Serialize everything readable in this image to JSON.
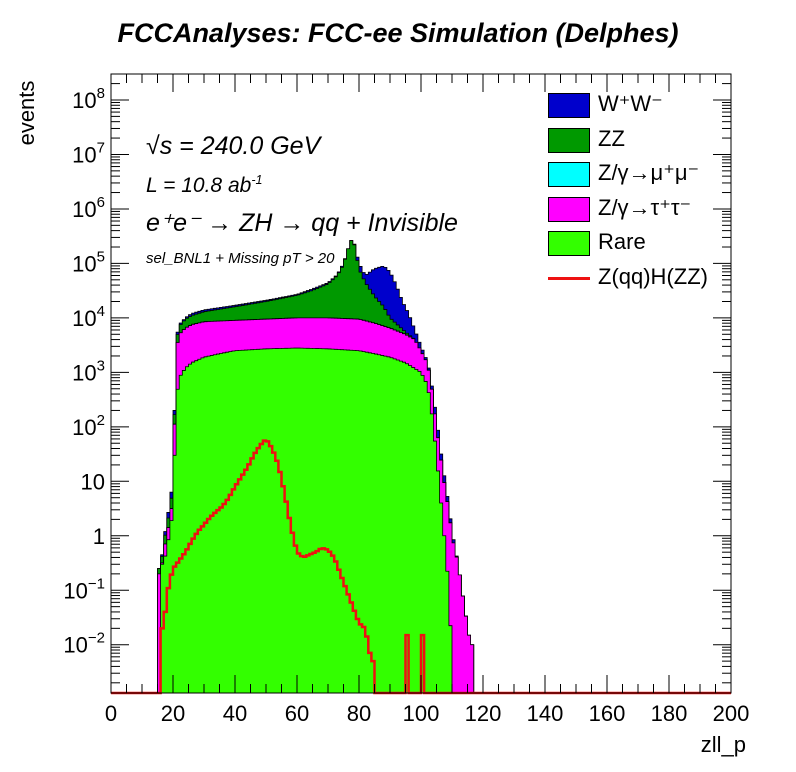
{
  "chart_data": {
    "type": "stacked-histogram-log",
    "title": "FCCAnalyses: FCC-ee Simulation (Delphes)",
    "xlabel": "zll_p",
    "ylabel": "events",
    "xlim": [
      0,
      200
    ],
    "ylim": [
      0.0013,
      300000000
    ],
    "log_y": true,
    "x_ticks": [
      0,
      20,
      40,
      60,
      80,
      100,
      120,
      140,
      160,
      180,
      200
    ],
    "y_ticks": [
      {
        "value": 0.01,
        "label": "10",
        "exp": "−2"
      },
      {
        "value": 0.1,
        "label": "10",
        "exp": "−1"
      },
      {
        "value": 1,
        "label": "1",
        "exp": ""
      },
      {
        "value": 10,
        "label": "10",
        "exp": ""
      },
      {
        "value": 100,
        "label": "10",
        "exp": "2"
      },
      {
        "value": 1000,
        "label": "10",
        "exp": "3"
      },
      {
        "value": 10000,
        "label": "10",
        "exp": "4"
      },
      {
        "value": 100000,
        "label": "10",
        "exp": "5"
      },
      {
        "value": 1000000,
        "label": "10",
        "exp": "6"
      },
      {
        "value": 10000000,
        "label": "10",
        "exp": "7"
      },
      {
        "value": 100000000,
        "label": "10",
        "exp": "8"
      }
    ],
    "annotations": {
      "sqrt_s": "s = 240.0 GeV",
      "lumi_prefix": "L = 10.8 ab",
      "lumi_exp": "-1",
      "process": "e⁺e⁻ → ZH → qq + Invisible",
      "selection": "sel_BNL1 + Missing pT > 20"
    },
    "legend": [
      {
        "key": "ww",
        "label": "W⁺W⁻",
        "color": "#0000cc",
        "style": "fill"
      },
      {
        "key": "zz",
        "label": "ZZ",
        "color": "#009900",
        "style": "fill"
      },
      {
        "key": "zmumu",
        "label": "Z/γ→μ⁺μ⁻",
        "color": "#00ffff",
        "style": "fill"
      },
      {
        "key": "ztautau",
        "label": "Z/γ→τ⁺τ⁻",
        "color": "#ff00ff",
        "style": "fill"
      },
      {
        "key": "rare",
        "label": "Rare",
        "color": "#33ff00",
        "style": "fill"
      },
      {
        "key": "signal",
        "label": "Z(qq)H(ZZ)",
        "color": "#ee1111",
        "style": "line"
      }
    ],
    "stack_order_bottom_to_top": [
      "rare",
      "ztautau",
      "zmumu",
      "zz",
      "ww"
    ],
    "stack_totals": {
      "rare": [
        [
          15,
          0
        ],
        [
          17,
          0.3
        ],
        [
          18,
          0.6
        ],
        [
          19,
          1.2
        ],
        [
          20,
          3
        ],
        [
          21,
          300
        ],
        [
          22,
          800
        ],
        [
          24,
          1200
        ],
        [
          26,
          1500
        ],
        [
          30,
          1900
        ],
        [
          35,
          2200
        ],
        [
          40,
          2500
        ],
        [
          50,
          2700
        ],
        [
          60,
          2800
        ],
        [
          70,
          2700
        ],
        [
          80,
          2500
        ],
        [
          85,
          2200
        ],
        [
          90,
          1900
        ],
        [
          95,
          1500
        ],
        [
          100,
          1000
        ],
        [
          102,
          600
        ],
        [
          103,
          300
        ],
        [
          104,
          100
        ],
        [
          105,
          30
        ],
        [
          106,
          8
        ],
        [
          107,
          2
        ],
        [
          108,
          0.5
        ],
        [
          109,
          0.1
        ],
        [
          110,
          0.005
        ],
        [
          111,
          0
        ]
      ],
      "ztautau": [
        [
          15,
          0
        ],
        [
          16,
          0.2
        ],
        [
          17,
          0.5
        ],
        [
          18,
          1
        ],
        [
          19,
          2
        ],
        [
          20,
          5
        ],
        [
          21,
          2500
        ],
        [
          22,
          5000
        ],
        [
          24,
          6500
        ],
        [
          26,
          7500
        ],
        [
          30,
          8500
        ],
        [
          40,
          9000
        ],
        [
          50,
          9500
        ],
        [
          60,
          10000
        ],
        [
          70,
          10000
        ],
        [
          80,
          9500
        ],
        [
          85,
          8000
        ],
        [
          90,
          6500
        ],
        [
          95,
          5000
        ],
        [
          98,
          4000
        ],
        [
          100,
          2500
        ],
        [
          102,
          1500
        ],
        [
          103,
          800
        ],
        [
          104,
          300
        ],
        [
          105,
          100
        ],
        [
          106,
          40
        ],
        [
          107,
          15
        ],
        [
          108,
          6
        ],
        [
          109,
          3
        ],
        [
          110,
          1
        ],
        [
          112,
          0.3
        ],
        [
          114,
          0.05
        ],
        [
          116,
          0.01
        ],
        [
          118,
          0
        ]
      ],
      "zmumu": [
        [
          15,
          0
        ],
        [
          16,
          0.2
        ],
        [
          17,
          0.5
        ],
        [
          18,
          1
        ],
        [
          19,
          2
        ],
        [
          20,
          5
        ],
        [
          21,
          2500
        ],
        [
          22,
          5000
        ],
        [
          24,
          6500
        ],
        [
          26,
          7500
        ],
        [
          30,
          8500
        ],
        [
          40,
          9000
        ],
        [
          50,
          9500
        ],
        [
          60,
          10000
        ],
        [
          70,
          10000
        ],
        [
          80,
          9500
        ],
        [
          85,
          8000
        ],
        [
          90,
          6500
        ],
        [
          95,
          5000
        ],
        [
          98,
          4000
        ],
        [
          100,
          2500
        ],
        [
          102,
          1500
        ],
        [
          103,
          800
        ],
        [
          104,
          300
        ],
        [
          105,
          100
        ],
        [
          106,
          40
        ],
        [
          107,
          15
        ],
        [
          108,
          6
        ],
        [
          109,
          3
        ],
        [
          110,
          1
        ],
        [
          112,
          0.3
        ],
        [
          114,
          0.05
        ],
        [
          116,
          0.01
        ],
        [
          118,
          0
        ]
      ],
      "zz": [
        [
          15,
          0
        ],
        [
          16,
          0.25
        ],
        [
          17,
          0.7
        ],
        [
          18,
          1.5
        ],
        [
          19,
          3
        ],
        [
          20,
          8
        ],
        [
          21,
          3500
        ],
        [
          22,
          7000
        ],
        [
          24,
          9500
        ],
        [
          26,
          11000
        ],
        [
          30,
          13000
        ],
        [
          40,
          16000
        ],
        [
          50,
          20000
        ],
        [
          60,
          26000
        ],
        [
          65,
          32000
        ],
        [
          70,
          42000
        ],
        [
          73,
          60000
        ],
        [
          75,
          95000
        ],
        [
          76,
          150000
        ],
        [
          77,
          230000
        ],
        [
          78,
          300000
        ],
        [
          79,
          160000
        ],
        [
          80,
          80000
        ],
        [
          82,
          45000
        ],
        [
          85,
          25000
        ],
        [
          88,
          16000
        ],
        [
          90,
          10000
        ],
        [
          93,
          7000
        ],
        [
          95,
          5500
        ],
        [
          98,
          4000
        ],
        [
          100,
          2500
        ],
        [
          102,
          1500
        ],
        [
          103,
          800
        ],
        [
          104,
          300
        ],
        [
          105,
          100
        ],
        [
          106,
          40
        ],
        [
          107,
          15
        ],
        [
          108,
          6
        ],
        [
          109,
          3
        ],
        [
          110,
          1
        ],
        [
          112,
          0.3
        ],
        [
          114,
          0.05
        ],
        [
          116,
          0.01
        ],
        [
          118,
          0
        ]
      ],
      "ww": [
        [
          15,
          0
        ],
        [
          16,
          0.25
        ],
        [
          17,
          0.8
        ],
        [
          18,
          1.8
        ],
        [
          19,
          4
        ],
        [
          20,
          10
        ],
        [
          21,
          4000
        ],
        [
          22,
          7500
        ],
        [
          24,
          10000
        ],
        [
          26,
          12000
        ],
        [
          30,
          14000
        ],
        [
          40,
          17000
        ],
        [
          50,
          21000
        ],
        [
          60,
          27000
        ],
        [
          65,
          34000
        ],
        [
          70,
          44000
        ],
        [
          73,
          62000
        ],
        [
          75,
          100000
        ],
        [
          76,
          150000
        ],
        [
          77,
          230000
        ],
        [
          78,
          300000
        ],
        [
          79,
          170000
        ],
        [
          80,
          100000
        ],
        [
          82,
          60000
        ],
        [
          85,
          80000
        ],
        [
          88,
          90000
        ],
        [
          90,
          70000
        ],
        [
          92,
          40000
        ],
        [
          94,
          20000
        ],
        [
          96,
          12000
        ],
        [
          98,
          6000
        ],
        [
          100,
          3000
        ],
        [
          102,
          1600
        ],
        [
          103,
          900
        ],
        [
          104,
          350
        ],
        [
          105,
          150
        ],
        [
          106,
          50
        ],
        [
          107,
          20
        ],
        [
          108,
          8
        ],
        [
          109,
          3.5
        ],
        [
          110,
          1.2
        ],
        [
          112,
          0.3
        ],
        [
          114,
          0.05
        ],
        [
          116,
          0.01
        ],
        [
          118,
          0
        ]
      ]
    },
    "signal": [
      [
        16,
        0
      ],
      [
        17,
        0.02
      ],
      [
        18,
        0.08
      ],
      [
        19,
        0.15
      ],
      [
        20,
        0.25
      ],
      [
        22,
        0.35
      ],
      [
        24,
        0.5
      ],
      [
        26,
        0.8
      ],
      [
        28,
        1.2
      ],
      [
        30,
        1.6
      ],
      [
        32,
        2.2
      ],
      [
        34,
        2.8
      ],
      [
        36,
        3.5
      ],
      [
        38,
        5
      ],
      [
        40,
        8
      ],
      [
        42,
        12
      ],
      [
        44,
        18
      ],
      [
        46,
        30
      ],
      [
        48,
        45
      ],
      [
        50,
        60
      ],
      [
        52,
        40
      ],
      [
        54,
        20
      ],
      [
        56,
        6
      ],
      [
        58,
        1.5
      ],
      [
        60,
        0.5
      ],
      [
        62,
        0.4
      ],
      [
        64,
        0.45
      ],
      [
        66,
        0.5
      ],
      [
        68,
        0.6
      ],
      [
        70,
        0.55
      ],
      [
        72,
        0.4
      ],
      [
        74,
        0.2
      ],
      [
        76,
        0.1
      ],
      [
        78,
        0.05
      ],
      [
        80,
        0.025
      ],
      [
        82,
        0.02
      ],
      [
        84,
        0.005
      ],
      [
        86,
        0
      ],
      [
        95,
        0
      ],
      [
        96,
        0.015
      ],
      [
        97,
        0
      ],
      [
        100,
        0
      ],
      [
        101,
        0.015
      ],
      [
        102,
        0
      ],
      [
        200,
        0
      ]
    ]
  }
}
